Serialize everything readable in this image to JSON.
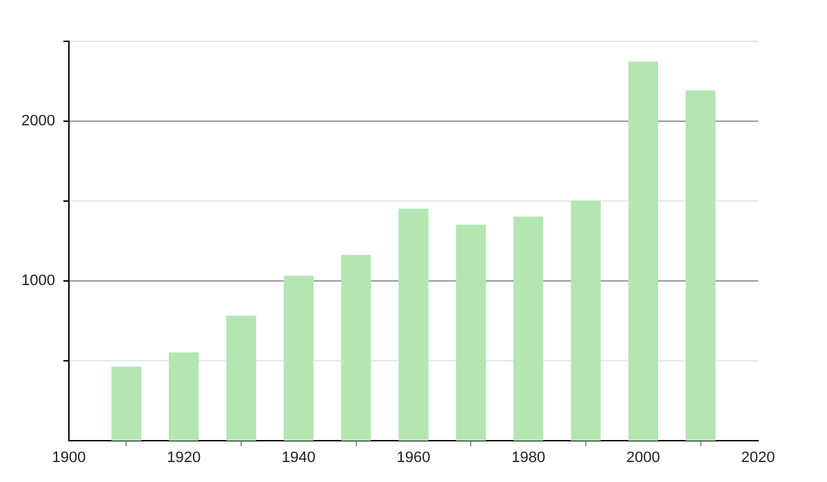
{
  "chart_data": {
    "type": "bar",
    "x": [
      1910,
      1920,
      1930,
      1940,
      1950,
      1960,
      1970,
      1980,
      1990,
      2000,
      2010
    ],
    "values": [
      460,
      550,
      780,
      1030,
      1160,
      1450,
      1350,
      1400,
      1500,
      2370,
      2190
    ],
    "color": "#b3e6b3",
    "xlim": [
      1900,
      2020
    ],
    "xticks": [
      1900,
      1920,
      1940,
      1960,
      1980,
      2000,
      2020
    ],
    "ylim": [
      0,
      2500
    ],
    "yticks": [
      {
        "value": 500,
        "label": null
      },
      1000,
      {
        "value": 1500,
        "label": null
      },
      2000,
      {
        "value": 2500,
        "label": null
      }
    ],
    "grid": "y"
  }
}
